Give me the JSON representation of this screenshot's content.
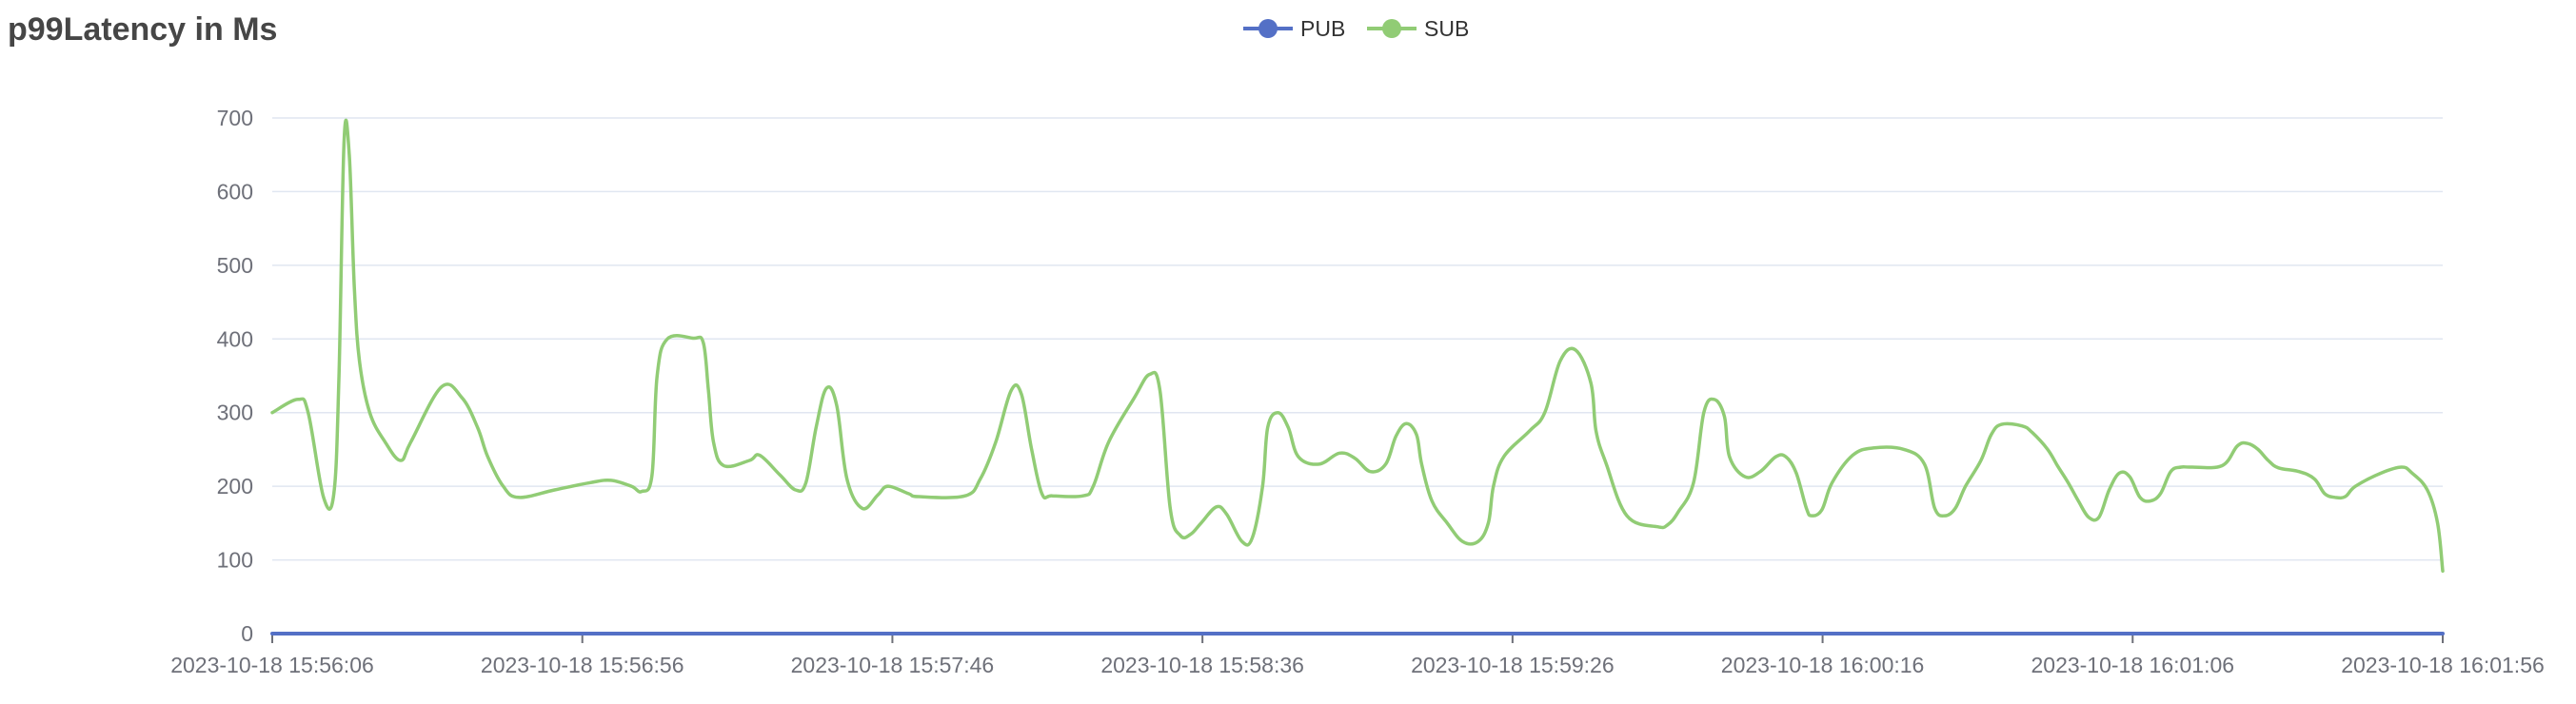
{
  "chart_data": {
    "type": "line",
    "title": "p99Latency in Ms",
    "legend_position": "top-center",
    "grid": true,
    "ylim": [
      0,
      700
    ],
    "yticks": [
      0,
      100,
      200,
      300,
      400,
      500,
      600,
      700
    ],
    "x": [
      "2023-10-18 15:56:06",
      "2023-10-18 15:56:56",
      "2023-10-18 15:57:46",
      "2023-10-18 15:58:36",
      "2023-10-18 15:59:26",
      "2023-10-18 16:00:16",
      "2023-10-18 16:01:06",
      "2023-10-18 16:01:56"
    ],
    "series": [
      {
        "name": "PUB",
        "color": "#5470c6",
        "points": [
          [
            0,
            0
          ],
          [
            350,
            0
          ]
        ]
      },
      {
        "name": "SUB",
        "color": "#91cc75",
        "points": [
          [
            0,
            300
          ],
          [
            5,
            318
          ],
          [
            7,
            300
          ],
          [
            10,
            185
          ],
          [
            12,
            190
          ],
          [
            13,
            350
          ],
          [
            14,
            670
          ],
          [
            15,
            650
          ],
          [
            16,
            470
          ],
          [
            17,
            370
          ],
          [
            19,
            300
          ],
          [
            22,
            260
          ],
          [
            25,
            235
          ],
          [
            27,
            260
          ],
          [
            33,
            335
          ],
          [
            37,
            320
          ],
          [
            40,
            280
          ],
          [
            42,
            240
          ],
          [
            45,
            200
          ],
          [
            48,
            185
          ],
          [
            55,
            195
          ],
          [
            62,
            205
          ],
          [
            66,
            208
          ],
          [
            70,
            200
          ],
          [
            72,
            193
          ],
          [
            74,
            215
          ],
          [
            75,
            350
          ],
          [
            77,
            400
          ],
          [
            82,
            401
          ],
          [
            84,
            395
          ],
          [
            85,
            330
          ],
          [
            86,
            260
          ],
          [
            88,
            228
          ],
          [
            93,
            235
          ],
          [
            95,
            242
          ],
          [
            99,
            215
          ],
          [
            102,
            195
          ],
          [
            104,
            205
          ],
          [
            106,
            280
          ],
          [
            108,
            333
          ],
          [
            110,
            310
          ],
          [
            112,
            210
          ],
          [
            115,
            170
          ],
          [
            118,
            188
          ],
          [
            120,
            200
          ],
          [
            124,
            190
          ],
          [
            126,
            186
          ],
          [
            135,
            187
          ],
          [
            138,
            210
          ],
          [
            141,
            260
          ],
          [
            144,
            330
          ],
          [
            146,
            325
          ],
          [
            148,
            250
          ],
          [
            150,
            190
          ],
          [
            152,
            187
          ],
          [
            158,
            187
          ],
          [
            160,
            200
          ],
          [
            163,
            260
          ],
          [
            168,
            320
          ],
          [
            171,
            352
          ],
          [
            173,
            330
          ],
          [
            175,
            170
          ],
          [
            177,
            133
          ],
          [
            179,
            135
          ],
          [
            181,
            150
          ],
          [
            184,
            172
          ],
          [
            186,
            162
          ],
          [
            189,
            125
          ],
          [
            191,
            130
          ],
          [
            193,
            200
          ],
          [
            194,
            280
          ],
          [
            196,
            300
          ],
          [
            198,
            280
          ],
          [
            200,
            240
          ],
          [
            204,
            230
          ],
          [
            208,
            245
          ],
          [
            211,
            238
          ],
          [
            214,
            220
          ],
          [
            217,
            230
          ],
          [
            219,
            268
          ],
          [
            221,
            285
          ],
          [
            223,
            270
          ],
          [
            224,
            230
          ],
          [
            226,
            180
          ],
          [
            229,
            150
          ],
          [
            232,
            125
          ],
          [
            235,
            125
          ],
          [
            237,
            150
          ],
          [
            238,
            200
          ],
          [
            240,
            240
          ],
          [
            245,
            275
          ],
          [
            248,
            300
          ],
          [
            251,
            370
          ],
          [
            254,
            385
          ],
          [
            257,
            340
          ],
          [
            258,
            275
          ],
          [
            260,
            230
          ],
          [
            264,
            160
          ],
          [
            270,
            145
          ],
          [
            272,
            148
          ],
          [
            274,
            165
          ],
          [
            277,
            205
          ],
          [
            279,
            300
          ],
          [
            281,
            318
          ],
          [
            283,
            295
          ],
          [
            284,
            240
          ],
          [
            287,
            213
          ],
          [
            290,
            220
          ],
          [
            293,
            240
          ],
          [
            295,
            240
          ],
          [
            297,
            218
          ],
          [
            299,
            170
          ],
          [
            300,
            160
          ],
          [
            302,
            168
          ],
          [
            304,
            205
          ],
          [
            308,
            242
          ],
          [
            312,
            252
          ],
          [
            318,
            250
          ],
          [
            322,
            230
          ],
          [
            324,
            170
          ],
          [
            326,
            160
          ],
          [
            328,
            170
          ],
          [
            330,
            200
          ],
          [
            333,
            235
          ],
          [
            335,
            270
          ],
          [
            337,
            284
          ],
          [
            341,
            282
          ],
          [
            343,
            273
          ],
          [
            346,
            250
          ],
          [
            348,
            227
          ],
          [
            350,
            205
          ],
          [
            352,
            180
          ],
          [
            354,
            158
          ],
          [
            356,
            158
          ],
          [
            358,
            195
          ],
          [
            360,
            218
          ],
          [
            362,
            213
          ],
          [
            364,
            185
          ],
          [
            366,
            180
          ],
          [
            368,
            190
          ],
          [
            370,
            220
          ],
          [
            372,
            226
          ],
          [
            374,
            226
          ],
          [
            380,
            228
          ],
          [
            383,
            255
          ],
          [
            385,
            258
          ],
          [
            387,
            250
          ],
          [
            389,
            235
          ],
          [
            391,
            225
          ],
          [
            395,
            220
          ],
          [
            398,
            210
          ],
          [
            400,
            190
          ],
          [
            402,
            185
          ],
          [
            404,
            186
          ],
          [
            406,
            200
          ],
          [
            411,
            218
          ],
          [
            415,
            226
          ],
          [
            417,
            218
          ],
          [
            420,
            195
          ],
          [
            422,
            150
          ],
          [
            423,
            85
          ]
        ]
      }
    ]
  }
}
